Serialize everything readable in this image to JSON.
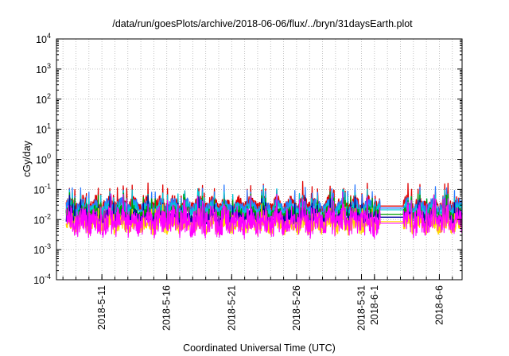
{
  "chart_data": {
    "type": "line",
    "title": "/data/run/goesPlots/archive/2018-06-06/flux/../bryn/31daysEarth.plot",
    "xlabel": "Coordinated Universal Time (UTC)",
    "ylabel": "cGy/day",
    "yscale": "log",
    "ylim": [
      0.0001,
      10000
    ],
    "xlim": [
      "2018-05-07T12:00",
      "2018-06-07T18:00"
    ],
    "grid": true,
    "legend": "none",
    "y_ticks": [
      {
        "value": 0.0001,
        "base": "10",
        "exp": "-4"
      },
      {
        "value": 0.001,
        "base": "10",
        "exp": "-3"
      },
      {
        "value": 0.01,
        "base": "10",
        "exp": "-2"
      },
      {
        "value": 0.1,
        "base": "10",
        "exp": "-1"
      },
      {
        "value": 1,
        "base": "10",
        "exp": "0"
      },
      {
        "value": 10,
        "base": "10",
        "exp": "1"
      },
      {
        "value": 100,
        "base": "10",
        "exp": "2"
      },
      {
        "value": 1000,
        "base": "10",
        "exp": "3"
      },
      {
        "value": 10000,
        "base": "10",
        "exp": "4"
      }
    ],
    "x_ticks": [
      {
        "date": "2018-05-11",
        "label": "2018-5-11"
      },
      {
        "date": "2018-05-16",
        "label": "2018-5-16"
      },
      {
        "date": "2018-05-21",
        "label": "2018-5-21"
      },
      {
        "date": "2018-05-26",
        "label": "2018-5-26"
      },
      {
        "date": "2018-05-31",
        "label": "2018-5-31"
      },
      {
        "date": "2018-06-01",
        "label": "2018-6-1"
      },
      {
        "date": "2018-06-06",
        "label": "2018-6-6"
      }
    ],
    "data_gap": [
      "2018-06-01T10:00",
      "2018-06-03T06:00"
    ],
    "series": [
      {
        "color": "#e00000",
        "base": 0.03,
        "amp": 0.22,
        "gap_value": 0.028
      },
      {
        "color": "#2b7bff",
        "base": 0.025,
        "amp": 0.22,
        "gap_value": 0.024
      },
      {
        "color": "#00c8d8",
        "base": 0.02,
        "amp": 0.2,
        "gap_value": 0.021
      },
      {
        "color": "#00a000",
        "base": 0.015,
        "amp": 0.2,
        "gap_value": 0.015
      },
      {
        "color": "#0000a0",
        "base": 0.011,
        "amp": 0.2,
        "gap_value": 0.012
      },
      {
        "color": "#ffd700",
        "base": 0.0065,
        "amp": 0.22,
        "gap_value": 0.0085
      },
      {
        "color": "#ff00ff",
        "base": 0.0085,
        "amp": 0.45,
        "gap_value": 0.0075
      }
    ]
  }
}
